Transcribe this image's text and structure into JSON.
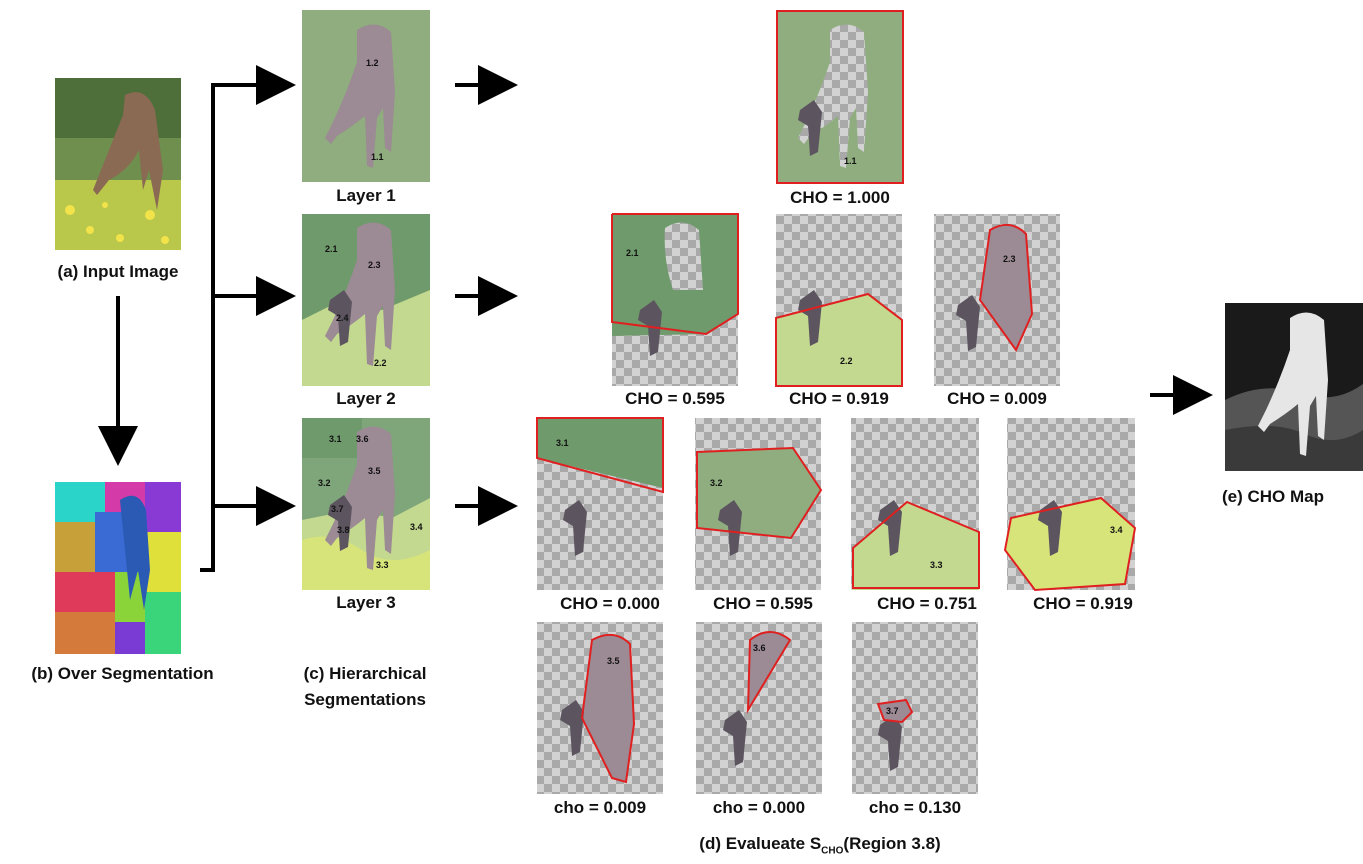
{
  "labels": {
    "input_image": "(a) Input Image",
    "over_segmentation": "(b) Over Segmentation",
    "hier_line1": "(c) Hierarchical",
    "hier_line2": "Segmentations",
    "evaluate_prefix": "(d) Evalueate S",
    "evaluate_sub": "CHO",
    "evaluate_suffix": "(Region 3.8)",
    "cho_map": "(e) CHO Map"
  },
  "layers": [
    {
      "label": "Layer 1",
      "regions": [
        "1.2",
        "1.1"
      ]
    },
    {
      "label": "Layer 2",
      "regions": [
        "2.1",
        "2.3",
        "2.4",
        "2.2"
      ]
    },
    {
      "label": "Layer 3",
      "regions": [
        "3.1",
        "3.6",
        "3.5",
        "3.2",
        "3.7",
        "3.8",
        "3.4",
        "3.3"
      ]
    }
  ],
  "evaluations": {
    "row1": [
      {
        "region": "1.1",
        "score": "CHO = 1.000"
      }
    ],
    "row2": [
      {
        "region": "2.1",
        "score": "CHO = 0.595"
      },
      {
        "region": "2.2",
        "score": "CHO = 0.919"
      },
      {
        "region": "2.3",
        "score": "CHO = 0.009"
      }
    ],
    "row3": [
      {
        "region": "3.1",
        "score": "CHO = 0.000"
      },
      {
        "region": "3.2",
        "score": "CHO = 0.595"
      },
      {
        "region": "3.3",
        "score": "CHO = 0.751"
      },
      {
        "region": "3.4",
        "score": "CHO = 0.919"
      }
    ],
    "row4": [
      {
        "region": "3.5",
        "score": "cho = 0.009"
      },
      {
        "region": "3.6",
        "score": "cho = 0.000"
      },
      {
        "region": "3.7",
        "score": "cho = 0.130"
      }
    ]
  },
  "colors": {
    "highlight": "#e02020",
    "deer": "#9c8a94",
    "head": "#5c5560",
    "layer1_bg": "#8fad7e",
    "layer2_top": "#6f9a6b",
    "layer2_bottom": "#c3d98f"
  }
}
